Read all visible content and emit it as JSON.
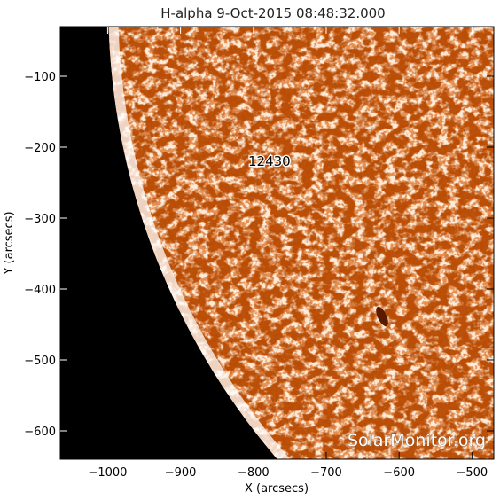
{
  "title": "H-alpha   9-Oct-2015  08:48:32.000",
  "x_axis": {
    "label": "X (arcsecs)",
    "range": [
      -1065,
      -470
    ],
    "ticks": [
      -1000,
      -900,
      -800,
      -700,
      -600,
      -500
    ],
    "tick_labels": [
      "−1000",
      "−900",
      "−800",
      "−700",
      "−600",
      "−500"
    ]
  },
  "y_axis": {
    "label": "Y (arcsecs)",
    "range": [
      -640,
      -30
    ],
    "ticks": [
      -100,
      -200,
      -300,
      -400,
      -500,
      -600
    ],
    "tick_labels": [
      "−100",
      "−200",
      "−300",
      "−400",
      "−500",
      "−600"
    ]
  },
  "active_region": {
    "number": "12430",
    "position": [
      -778,
      -226
    ]
  },
  "watermark": "SolarMonitor.org",
  "colors": {
    "off_disk": "#000000",
    "disk_bright": "#ffffff",
    "disk_mid": "#f0a060",
    "disk_dark": "#a83c00"
  },
  "image_content": "Portion of the solar disk near the east limb in H-alpha, orange-red mottled chromosphere against black space"
}
